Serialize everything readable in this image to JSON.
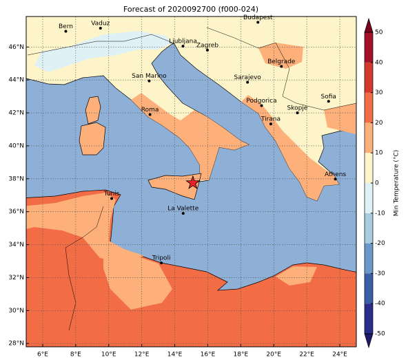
{
  "title": "Forecast of 2020092700 (f000-024)",
  "map": {
    "xlim": [
      5,
      25
    ],
    "ylim": [
      27.8,
      47.85
    ],
    "grid": true,
    "xticks": [
      {
        "value": 6,
        "label": "6°E"
      },
      {
        "value": 8,
        "label": "8°E"
      },
      {
        "value": 10,
        "label": "10°E"
      },
      {
        "value": 12,
        "label": "12°E"
      },
      {
        "value": 14,
        "label": "14°E"
      },
      {
        "value": 16,
        "label": "16°E"
      },
      {
        "value": 18,
        "label": "18°E"
      },
      {
        "value": 20,
        "label": "20°E"
      },
      {
        "value": 22,
        "label": "22°E"
      },
      {
        "value": 24,
        "label": "24°E"
      }
    ],
    "yticks": [
      {
        "value": 28,
        "label": "28°N"
      },
      {
        "value": 30,
        "label": "30°N"
      },
      {
        "value": 32,
        "label": "32°N"
      },
      {
        "value": 34,
        "label": "34°N"
      },
      {
        "value": 36,
        "label": "36°N"
      },
      {
        "value": 38,
        "label": "38°N"
      },
      {
        "value": 40,
        "label": "40°N"
      },
      {
        "value": 42,
        "label": "42°N"
      },
      {
        "value": 44,
        "label": "44°N"
      },
      {
        "value": 46,
        "label": "46°N"
      }
    ],
    "cities": [
      {
        "name": "Bern",
        "lon": 7.4,
        "lat": 46.95
      },
      {
        "name": "Vaduz",
        "lon": 9.5,
        "lat": 47.14
      },
      {
        "name": "Budapest",
        "lon": 19.04,
        "lat": 47.5
      },
      {
        "name": "Ljubljana",
        "lon": 14.5,
        "lat": 46.05
      },
      {
        "name": "Zagreb",
        "lon": 15.98,
        "lat": 45.81
      },
      {
        "name": "San Marino",
        "lon": 12.45,
        "lat": 43.94
      },
      {
        "name": "Sarajevo",
        "lon": 18.41,
        "lat": 43.86
      },
      {
        "name": "Belgrade",
        "lon": 20.46,
        "lat": 44.82
      },
      {
        "name": "Roma",
        "lon": 12.5,
        "lat": 41.9
      },
      {
        "name": "Podgorica",
        "lon": 19.26,
        "lat": 42.44
      },
      {
        "name": "Skopje",
        "lon": 21.43,
        "lat": 42.0
      },
      {
        "name": "Sofia",
        "lon": 23.32,
        "lat": 42.7
      },
      {
        "name": "Tirana",
        "lon": 19.82,
        "lat": 41.33
      },
      {
        "name": "Athens",
        "lon": 23.73,
        "lat": 37.98
      },
      {
        "name": "Tunis",
        "lon": 10.18,
        "lat": 36.8
      },
      {
        "name": "La Valette",
        "lon": 14.51,
        "lat": 35.9
      },
      {
        "name": "Tripoli",
        "lon": 13.19,
        "lat": 32.89
      }
    ],
    "marker": {
      "lon": 15.1,
      "lat": 37.75,
      "color": "#e8202a"
    }
  },
  "colorbar": {
    "label": "Min Temperature (°C)",
    "lim": [
      -50,
      50
    ],
    "ticks": [
      -50,
      -40,
      -30,
      -20,
      -10,
      0,
      10,
      20,
      30,
      40,
      50
    ],
    "colors": [
      "#2b2d8c",
      "#3a5fa8",
      "#6a98c8",
      "#a8cbe0",
      "#e0f1f6",
      "#fdf5c9",
      "#fdb07a",
      "#f26c45",
      "#d33a2d",
      "#a3102a"
    ],
    "under_color": "#1e1a6e",
    "over_color": "#7a0020"
  }
}
